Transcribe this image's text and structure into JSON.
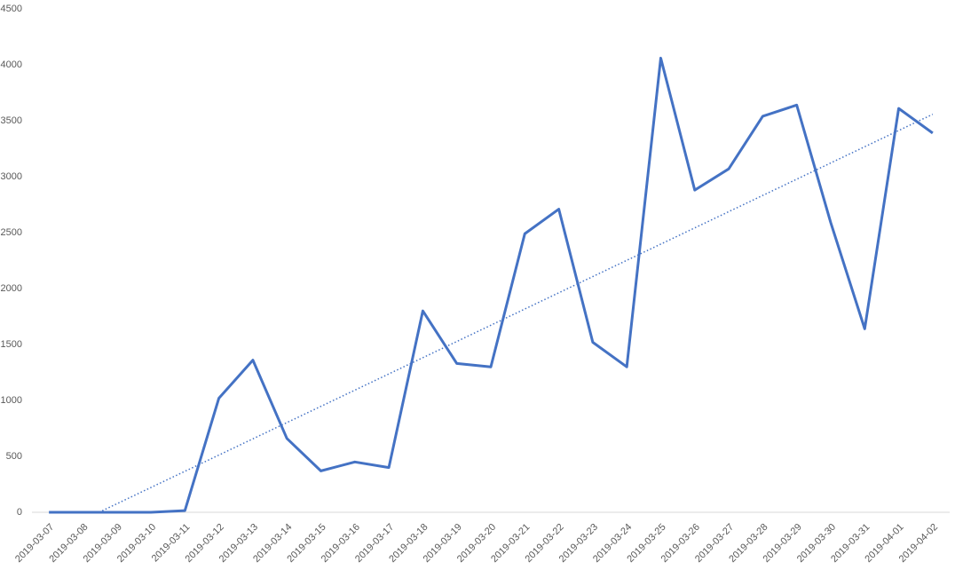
{
  "chart_data": {
    "type": "line",
    "categories": [
      "2019-03-07",
      "2019-03-08",
      "2019-03-09",
      "2019-03-10",
      "2019-03-11",
      "2019-03-12",
      "2019-03-13",
      "2019-03-14",
      "2019-03-15",
      "2019-03-16",
      "2019-03-17",
      "2019-03-18",
      "2019-03-19",
      "2019-03-20",
      "2019-03-21",
      "2019-03-22",
      "2019-03-23",
      "2019-03-24",
      "2019-03-25",
      "2019-03-26",
      "2019-03-27",
      "2019-03-28",
      "2019-03-29",
      "2019-03-30",
      "2019-03-31",
      "2019-04-01",
      "2019-04-02"
    ],
    "values": [
      0,
      0,
      0,
      0,
      15,
      1020,
      1360,
      660,
      370,
      450,
      400,
      1800,
      1330,
      1300,
      2490,
      2710,
      1520,
      1300,
      4060,
      2880,
      3070,
      3540,
      3640,
      2590,
      1640,
      3610,
      3390
    ],
    "color": "#4472c4",
    "trendline": "linear",
    "ylim": [
      0,
      4500
    ],
    "yticks": [
      0,
      500,
      1000,
      1500,
      2000,
      2500,
      3000,
      3500,
      4000,
      4500
    ],
    "grid": false
  }
}
